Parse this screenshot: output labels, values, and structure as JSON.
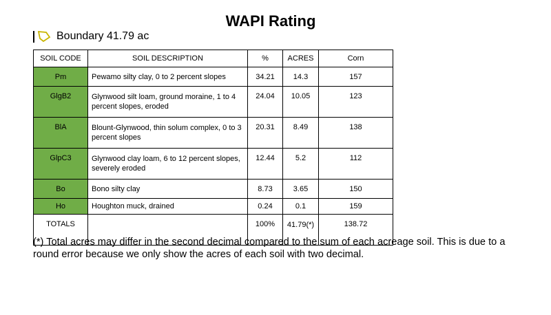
{
  "title": "WAPI Rating",
  "boundary": {
    "label": "Boundary 41.79 ac"
  },
  "table": {
    "headers": [
      "SOIL CODE",
      "SOIL DESCRIPTION",
      "%",
      "ACRES",
      "Corn"
    ],
    "rows": [
      {
        "code": "Pm",
        "description": "Pewamo silty clay, 0 to 2 percent slopes",
        "percent": "34.21",
        "acres": "14.3",
        "corn": "157"
      },
      {
        "code": "GlgB2",
        "description": "Glynwood silt loam, ground moraine, 1 to 4 percent slopes, eroded",
        "percent": "24.04",
        "acres": "10.05",
        "corn": "123"
      },
      {
        "code": "BlA",
        "description": "Blount-Glynwood, thin solum complex, 0 to 3 percent slopes",
        "percent": "20.31",
        "acres": "8.49",
        "corn": "138"
      },
      {
        "code": "GlpC3",
        "description": "Glynwood clay loam, 6 to 12 percent slopes, severely eroded",
        "percent": "12.44",
        "acres": "5.2",
        "corn": "112"
      },
      {
        "code": "Bo",
        "description": "Bono silty clay",
        "percent": "8.73",
        "acres": "3.65",
        "corn": "150"
      },
      {
        "code": "Ho",
        "description": "Houghton muck, drained",
        "percent": "0.24",
        "acres": "0.1",
        "corn": "159"
      }
    ],
    "totals": {
      "label": "TOTALS",
      "description": "",
      "percent": "100%",
      "acres": "41.79(*)",
      "corn": "138.72"
    }
  },
  "footnote": "(*) Total acres may differ in the second decimal compared to the sum of each acreage soil. This is due to a round error because we only show the acres of each soil with two decimal.",
  "colors": {
    "code_cell_bg": "#70ad47",
    "boundary_icon": "#c8b400"
  }
}
